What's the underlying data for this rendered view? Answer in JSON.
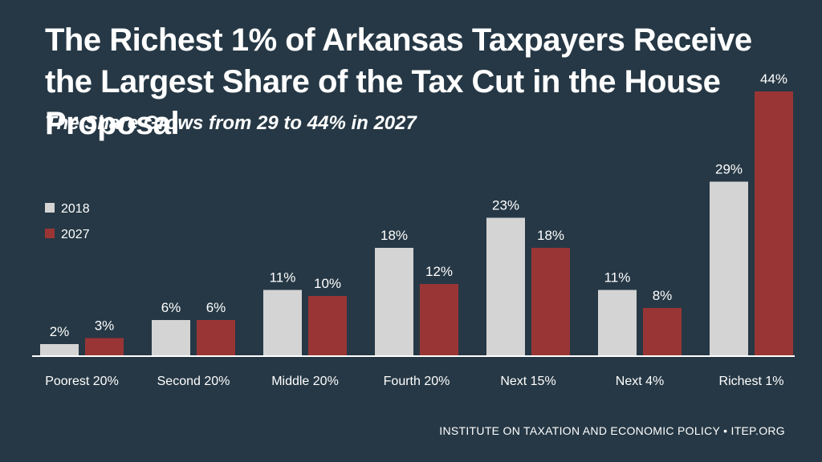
{
  "title": "The Richest 1% of Arkansas Taxpayers Receive the Largest Share of the Tax Cut in the House Proposal",
  "subtitle": "The Share Grows from 29 to 44% in 2027",
  "footer": "INSTITUTE ON TAXATION AND ECONOMIC POLICY • ITEP.ORG",
  "colors": {
    "background": "#263845",
    "series_2018": "#d4d4d4",
    "series_2027": "#9a3535",
    "text": "#ffffff",
    "axis": "#ffffff"
  },
  "chart_data": {
    "type": "bar",
    "categories": [
      "Poorest 20%",
      "Second 20%",
      "Middle 20%",
      "Fourth 20%",
      "Next 15%",
      "Next 4%",
      "Richest 1%"
    ],
    "series": [
      {
        "name": "2018",
        "values": [
          2,
          6,
          11,
          18,
          23,
          11,
          29
        ],
        "labels": [
          "2%",
          "6%",
          "11%",
          "18%",
          "23%",
          "11%",
          "29%"
        ],
        "color": "#d4d4d4"
      },
      {
        "name": "2027",
        "values": [
          3,
          6,
          10,
          12,
          18,
          8,
          44
        ],
        "labels": [
          "3%",
          "6%",
          "10%",
          "12%",
          "18%",
          "8%",
          "44%"
        ],
        "color": "#9a3535"
      }
    ],
    "ylim": [
      0,
      44
    ],
    "legend_position": "left",
    "grid": false,
    "xlabel": "",
    "ylabel": ""
  }
}
